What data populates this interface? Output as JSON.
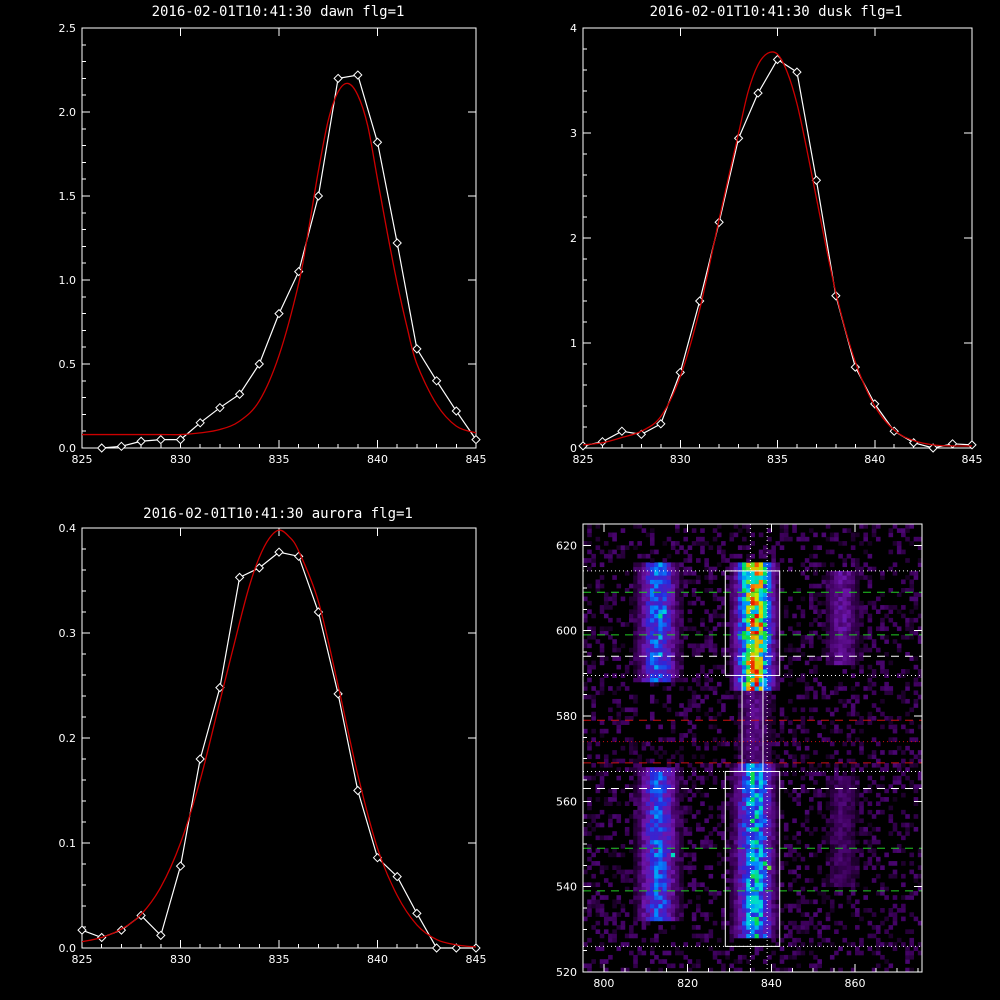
{
  "colors": {
    "background": "#000000",
    "data": "#ffffff",
    "fit": "#cc0000",
    "axes": "#ffffff",
    "green_line": "#22cc22",
    "red_line": "#cc1111",
    "white_line": "#ffffff"
  },
  "chart_data": [
    {
      "type": "line",
      "title": "2016-02-01T10:41:30 dawn flg=1",
      "xlim": [
        825,
        845
      ],
      "ylim": [
        0,
        2.5
      ],
      "xticks": [
        "825",
        "830",
        "835",
        "840",
        "845"
      ],
      "yticks": [
        "0.0",
        "0.5",
        "1.0",
        "1.5",
        "2.0",
        "2.5"
      ],
      "series": [
        {
          "marker": "diamond",
          "x": [
            826,
            827,
            828,
            829,
            830,
            831,
            832,
            833,
            834,
            835,
            836,
            837,
            838,
            839,
            840,
            841,
            842,
            843,
            844,
            845
          ],
          "y": [
            0.0,
            0.01,
            0.04,
            0.05,
            0.05,
            0.15,
            0.24,
            0.32,
            0.5,
            0.8,
            1.05,
            1.5,
            2.2,
            2.22,
            1.82,
            1.22,
            0.59,
            0.4,
            0.22,
            0.05
          ]
        },
        {
          "marker": "none",
          "style": "fit",
          "x": [
            825,
            827,
            829,
            830,
            831,
            832,
            833,
            834,
            835,
            836,
            836.5,
            837,
            837.5,
            838,
            838.5,
            839,
            839.5,
            840,
            840.5,
            841,
            841.5,
            842,
            843,
            844,
            845
          ],
          "y": [
            0.08,
            0.08,
            0.08,
            0.08,
            0.09,
            0.11,
            0.16,
            0.28,
            0.55,
            0.98,
            1.3,
            1.65,
            1.95,
            2.12,
            2.17,
            2.1,
            1.92,
            1.6,
            1.28,
            0.98,
            0.72,
            0.5,
            0.26,
            0.13,
            0.09
          ]
        }
      ]
    },
    {
      "type": "line",
      "title": "2016-02-01T10:41:30 dusk flg=1",
      "xlim": [
        825,
        845
      ],
      "ylim": [
        0,
        4
      ],
      "xticks": [
        "825",
        "830",
        "835",
        "840",
        "845"
      ],
      "yticks": [
        "0",
        "1",
        "2",
        "3",
        "4"
      ],
      "series": [
        {
          "marker": "diamond",
          "x": [
            825,
            826,
            827,
            828,
            829,
            830,
            831,
            832,
            833,
            834,
            835,
            836,
            837,
            838,
            839,
            840,
            841,
            842,
            843,
            844,
            845
          ],
          "y": [
            0.02,
            0.06,
            0.16,
            0.13,
            0.23,
            0.72,
            1.4,
            2.15,
            2.95,
            3.38,
            3.7,
            3.58,
            2.55,
            1.45,
            0.77,
            0.42,
            0.16,
            0.05,
            0.0,
            0.04,
            0.03
          ]
        },
        {
          "marker": "none",
          "style": "fit",
          "x": [
            825,
            826,
            827,
            828,
            829,
            830,
            831,
            832,
            833,
            833.5,
            834,
            834.5,
            835,
            835.5,
            836,
            836.5,
            837,
            838,
            839,
            840,
            841,
            842,
            843,
            844,
            845
          ],
          "y": [
            0.03,
            0.05,
            0.1,
            0.16,
            0.3,
            0.68,
            1.32,
            2.18,
            3.0,
            3.4,
            3.65,
            3.76,
            3.75,
            3.58,
            3.28,
            2.85,
            2.38,
            1.48,
            0.82,
            0.4,
            0.17,
            0.07,
            0.03,
            0.02,
            0.02
          ]
        }
      ]
    },
    {
      "type": "line",
      "title": "2016-02-01T10:41:30 aurora flg=1",
      "xlim": [
        825,
        845
      ],
      "ylim": [
        0,
        0.4
      ],
      "xticks": [
        "825",
        "830",
        "835",
        "840",
        "845"
      ],
      "yticks": [
        "0.0",
        "0.1",
        "0.2",
        "0.3",
        "0.4"
      ],
      "series": [
        {
          "marker": "diamond",
          "x": [
            825,
            826,
            827,
            828,
            829,
            830,
            831,
            832,
            833,
            834,
            835,
            836,
            837,
            838,
            839,
            840,
            841,
            842,
            843,
            844,
            845
          ],
          "y": [
            0.017,
            0.01,
            0.017,
            0.031,
            0.012,
            0.078,
            0.18,
            0.248,
            0.353,
            0.362,
            0.377,
            0.373,
            0.32,
            0.242,
            0.15,
            0.086,
            0.068,
            0.033,
            0.0,
            0.0,
            0.0
          ]
        },
        {
          "marker": "none",
          "style": "fit",
          "x": [
            825,
            826,
            827,
            828,
            829,
            830,
            831,
            832,
            833,
            833.5,
            834,
            834.5,
            835,
            835.5,
            836,
            837,
            838,
            839,
            840,
            841,
            842,
            843,
            844,
            845
          ],
          "y": [
            0.006,
            0.01,
            0.018,
            0.032,
            0.058,
            0.1,
            0.16,
            0.235,
            0.31,
            0.345,
            0.372,
            0.39,
            0.398,
            0.392,
            0.378,
            0.33,
            0.25,
            0.165,
            0.095,
            0.05,
            0.022,
            0.008,
            0.003,
            0.001
          ]
        }
      ]
    },
    {
      "type": "heatmap",
      "title": "",
      "xlim": [
        795,
        876
      ],
      "ylim": [
        520,
        625
      ],
      "xticks": [
        "800",
        "820",
        "840",
        "860"
      ],
      "yticks": [
        "520",
        "540",
        "560",
        "580",
        "600",
        "620"
      ],
      "columns": [
        {
          "center": 813,
          "halfwidth": 4.5,
          "segments": [
            {
              "y0": 588,
              "y1": 615,
              "peak": 0.48
            },
            {
              "y0": 532,
              "y1": 567,
              "peak": 0.44
            }
          ]
        },
        {
          "center": 836,
          "halfwidth": 4.5,
          "segments": [
            {
              "y0": 586,
              "y1": 615,
              "peak": 1.0
            },
            {
              "y0": 568,
              "y1": 586,
              "peak": 0.14
            },
            {
              "y0": 528,
              "y1": 568,
              "peak": 0.62
            }
          ]
        },
        {
          "center": 857,
          "halfwidth": 4,
          "segments": [
            {
              "y0": 592,
              "y1": 613,
              "peak": 0.18
            },
            {
              "y0": 540,
              "y1": 565,
              "peak": 0.1
            }
          ]
        }
      ],
      "hot_spots": [
        {
          "x": 835,
          "y": 602,
          "v": 1.0
        },
        {
          "x": 837,
          "y": 601,
          "v": 0.95
        },
        {
          "x": 836,
          "y": 603,
          "v": 0.9
        },
        {
          "x": 834,
          "y": 604,
          "v": 0.8
        },
        {
          "x": 837,
          "y": 597,
          "v": 0.82
        },
        {
          "x": 835,
          "y": 591,
          "v": 0.95
        },
        {
          "x": 837,
          "y": 592,
          "v": 0.78
        },
        {
          "x": 839,
          "y": 544,
          "v": 0.68
        },
        {
          "x": 838,
          "y": 545,
          "v": 0.62
        },
        {
          "x": 813,
          "y": 603,
          "v": 0.58
        },
        {
          "x": 814,
          "y": 604,
          "v": 0.5
        },
        {
          "x": 816,
          "y": 547,
          "v": 0.54
        }
      ],
      "boxes": [
        {
          "x0": 829,
          "x1": 842,
          "y0": 589.5,
          "y1": 614
        },
        {
          "x0": 829,
          "x1": 842,
          "y0": 526,
          "y1": 567
        },
        {
          "x0": 833,
          "x1": 838,
          "y0": 567,
          "y1": 589.5
        }
      ],
      "vlines": [
        {
          "x": 835,
          "style": "dotted"
        },
        {
          "x": 839,
          "style": "dotted"
        }
      ],
      "hlines": [
        {
          "y": 614,
          "color": "white",
          "style": "dotted"
        },
        {
          "y": 609,
          "color": "green",
          "style": "dashed"
        },
        {
          "y": 599,
          "color": "green",
          "style": "dashed"
        },
        {
          "y": 594,
          "color": "white",
          "style": "dashed"
        },
        {
          "y": 589.5,
          "color": "white",
          "style": "dotted"
        },
        {
          "y": 579,
          "color": "red",
          "style": "dashed"
        },
        {
          "y": 574,
          "color": "red",
          "style": "dotted"
        },
        {
          "y": 569,
          "color": "red",
          "style": "dashed"
        },
        {
          "y": 567,
          "color": "white",
          "style": "dotted"
        },
        {
          "y": 563,
          "color": "white",
          "style": "dashed"
        },
        {
          "y": 549,
          "color": "green",
          "style": "dashed"
        },
        {
          "y": 539,
          "color": "green",
          "style": "dashed"
        },
        {
          "y": 526,
          "color": "white",
          "style": "dotted"
        }
      ]
    }
  ]
}
